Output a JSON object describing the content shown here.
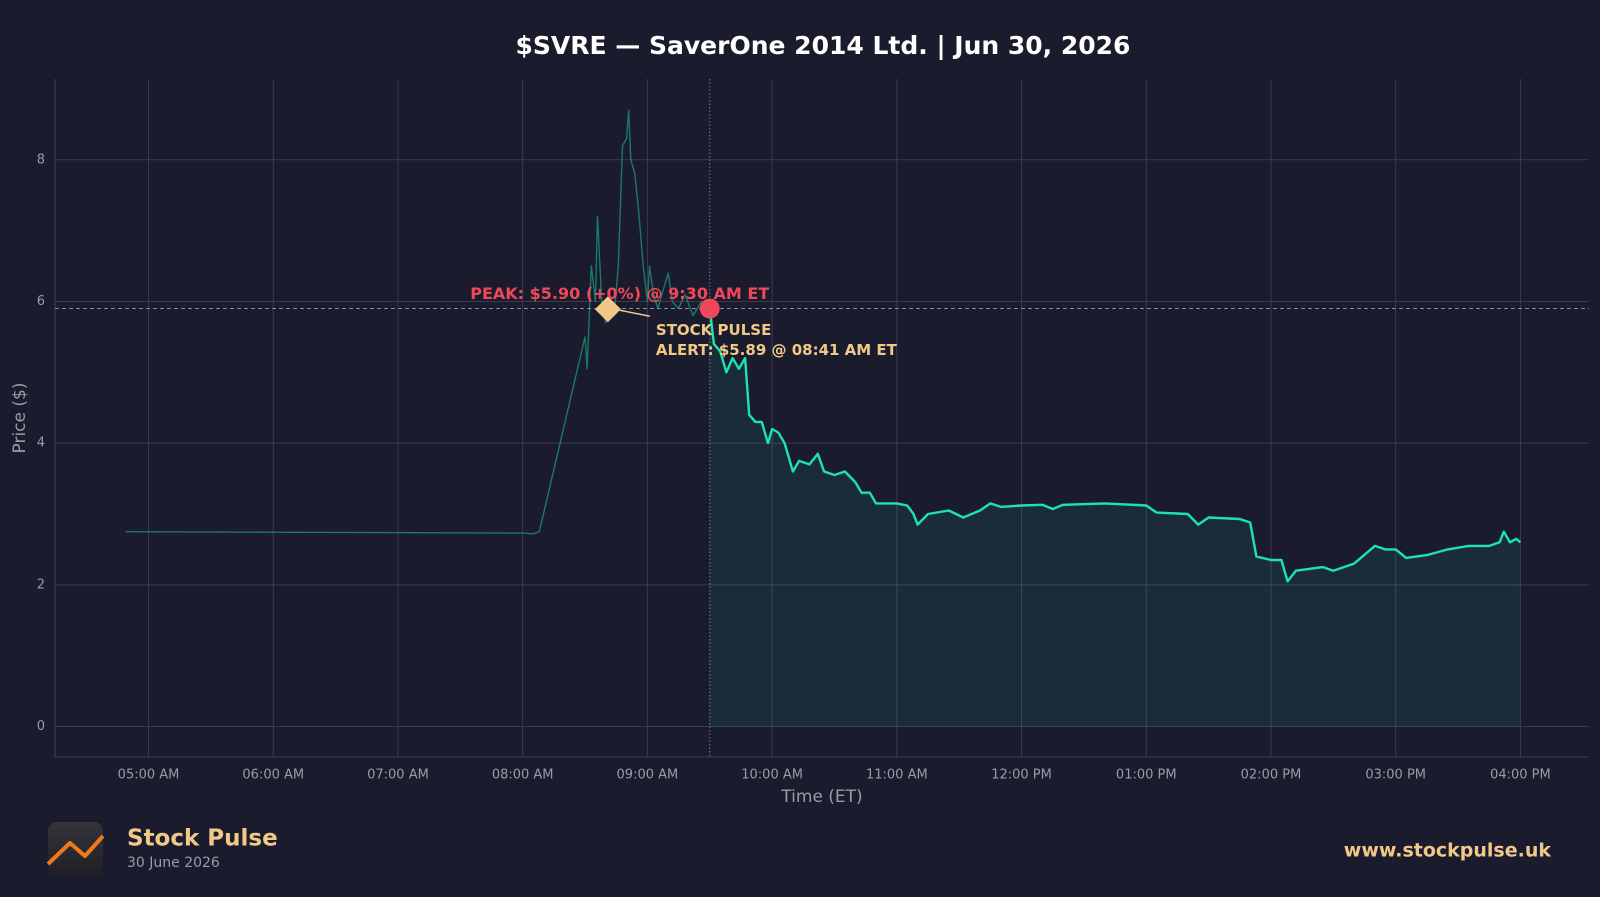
{
  "chart_data": {
    "type": "line",
    "title": "$SVRE — SaverOne 2014 Ltd.  |  Jun 30, 2026",
    "x_label": "Time (ET)",
    "y_label": "Price ($)",
    "xlim": [
      "04:15",
      "16:33"
    ],
    "ylim": [
      -0.43,
      9.14
    ],
    "xticks": [
      {
        "value": "05:00",
        "label": "05:00 AM"
      },
      {
        "value": "06:00",
        "label": "06:00 AM"
      },
      {
        "value": "07:00",
        "label": "07:00 AM"
      },
      {
        "value": "08:00",
        "label": "08:00 AM"
      },
      {
        "value": "09:00",
        "label": "09:00 AM"
      },
      {
        "value": "10:00",
        "label": "10:00 AM"
      },
      {
        "value": "11:00",
        "label": "11:00 AM"
      },
      {
        "value": "12:00",
        "label": "12:00 PM"
      },
      {
        "value": "13:00",
        "label": "01:00 PM"
      },
      {
        "value": "14:00",
        "label": "02:00 PM"
      },
      {
        "value": "15:00",
        "label": "03:00 PM"
      },
      {
        "value": "16:00",
        "label": "04:00 PM"
      }
    ],
    "yticks": [
      0,
      2,
      4,
      6,
      8
    ],
    "grid": true,
    "series": [
      {
        "color": "#1a8a72",
        "x": [
          "04:49",
          "08:00",
          "08:05",
          "08:08",
          "08:30",
          "08:31",
          "08:33",
          "08:35",
          "08:36",
          "08:38",
          "08:40",
          "08:42",
          "08:44",
          "08:46",
          "08:48",
          "08:50",
          "08:51",
          "08:52",
          "08:54",
          "08:56",
          "08:58",
          "09:00",
          "09:01",
          "09:03",
          "09:05",
          "09:08",
          "09:10",
          "09:12",
          "09:15",
          "09:18",
          "09:22",
          "09:26",
          "09:30"
        ],
        "values": [
          2.75,
          2.73,
          2.72,
          2.75,
          5.5,
          5.05,
          6.5,
          6.0,
          7.2,
          6.0,
          5.7,
          5.9,
          5.8,
          6.5,
          8.2,
          8.3,
          8.7,
          8.0,
          7.8,
          7.2,
          6.5,
          6.0,
          6.5,
          6.1,
          5.9,
          6.2,
          6.4,
          6.0,
          5.9,
          6.1,
          5.8,
          6.0,
          5.9
        ]
      },
      {
        "color": "#1de3b0",
        "fill": true,
        "x": [
          "09:30",
          "09:32",
          "09:35",
          "09:38",
          "09:41",
          "09:44",
          "09:47",
          "09:49",
          "09:52",
          "09:55",
          "09:58",
          "10:00",
          "10:03",
          "10:06",
          "10:10",
          "10:13",
          "10:18",
          "10:22",
          "10:25",
          "10:30",
          "10:35",
          "10:40",
          "10:43",
          "10:47",
          "10:50",
          "11:00",
          "11:05",
          "11:08",
          "11:10",
          "11:15",
          "11:25",
          "11:32",
          "11:40",
          "11:45",
          "11:50",
          "12:00",
          "12:10",
          "12:15",
          "12:20",
          "12:40",
          "13:00",
          "13:05",
          "13:20",
          "13:25",
          "13:30",
          "13:45",
          "13:50",
          "13:53",
          "14:00",
          "14:05",
          "14:08",
          "14:12",
          "14:25",
          "14:30",
          "14:40",
          "14:50",
          "14:55",
          "15:00",
          "15:05",
          "15:15",
          "15:25",
          "15:35",
          "15:45",
          "15:50",
          "15:52",
          "15:55",
          "15:58",
          "16:00"
        ],
        "values": [
          5.9,
          5.4,
          5.3,
          5.0,
          5.2,
          5.05,
          5.2,
          4.4,
          4.3,
          4.3,
          4.0,
          4.2,
          4.15,
          4.0,
          3.6,
          3.75,
          3.7,
          3.85,
          3.6,
          3.55,
          3.6,
          3.45,
          3.3,
          3.3,
          3.15,
          3.15,
          3.12,
          3.0,
          2.85,
          3.0,
          3.05,
          2.95,
          3.05,
          3.15,
          3.1,
          3.12,
          3.13,
          3.07,
          3.13,
          3.15,
          3.12,
          3.02,
          3.0,
          2.85,
          2.95,
          2.93,
          2.88,
          2.4,
          2.35,
          2.35,
          2.05,
          2.2,
          2.25,
          2.2,
          2.3,
          2.55,
          2.5,
          2.5,
          2.38,
          2.42,
          2.5,
          2.55,
          2.55,
          2.6,
          2.75,
          2.6,
          2.65,
          2.6
        ]
      }
    ],
    "annotations": {
      "peak": {
        "text": "PEAK: $5.90 (+0%) @ 9:30 AM ET",
        "x": "09:30",
        "value": 5.9,
        "color": "#f0475a"
      },
      "alert": {
        "lines": [
          "STOCK PULSE",
          "ALERT: $5.89 @ 08:41 AM ET"
        ],
        "x": "08:41",
        "value": 5.89,
        "color": "#f0c987"
      }
    }
  },
  "footer": {
    "brand": "Stock Pulse",
    "date": "30 June 2026",
    "url": "www.stockpulse.uk"
  }
}
